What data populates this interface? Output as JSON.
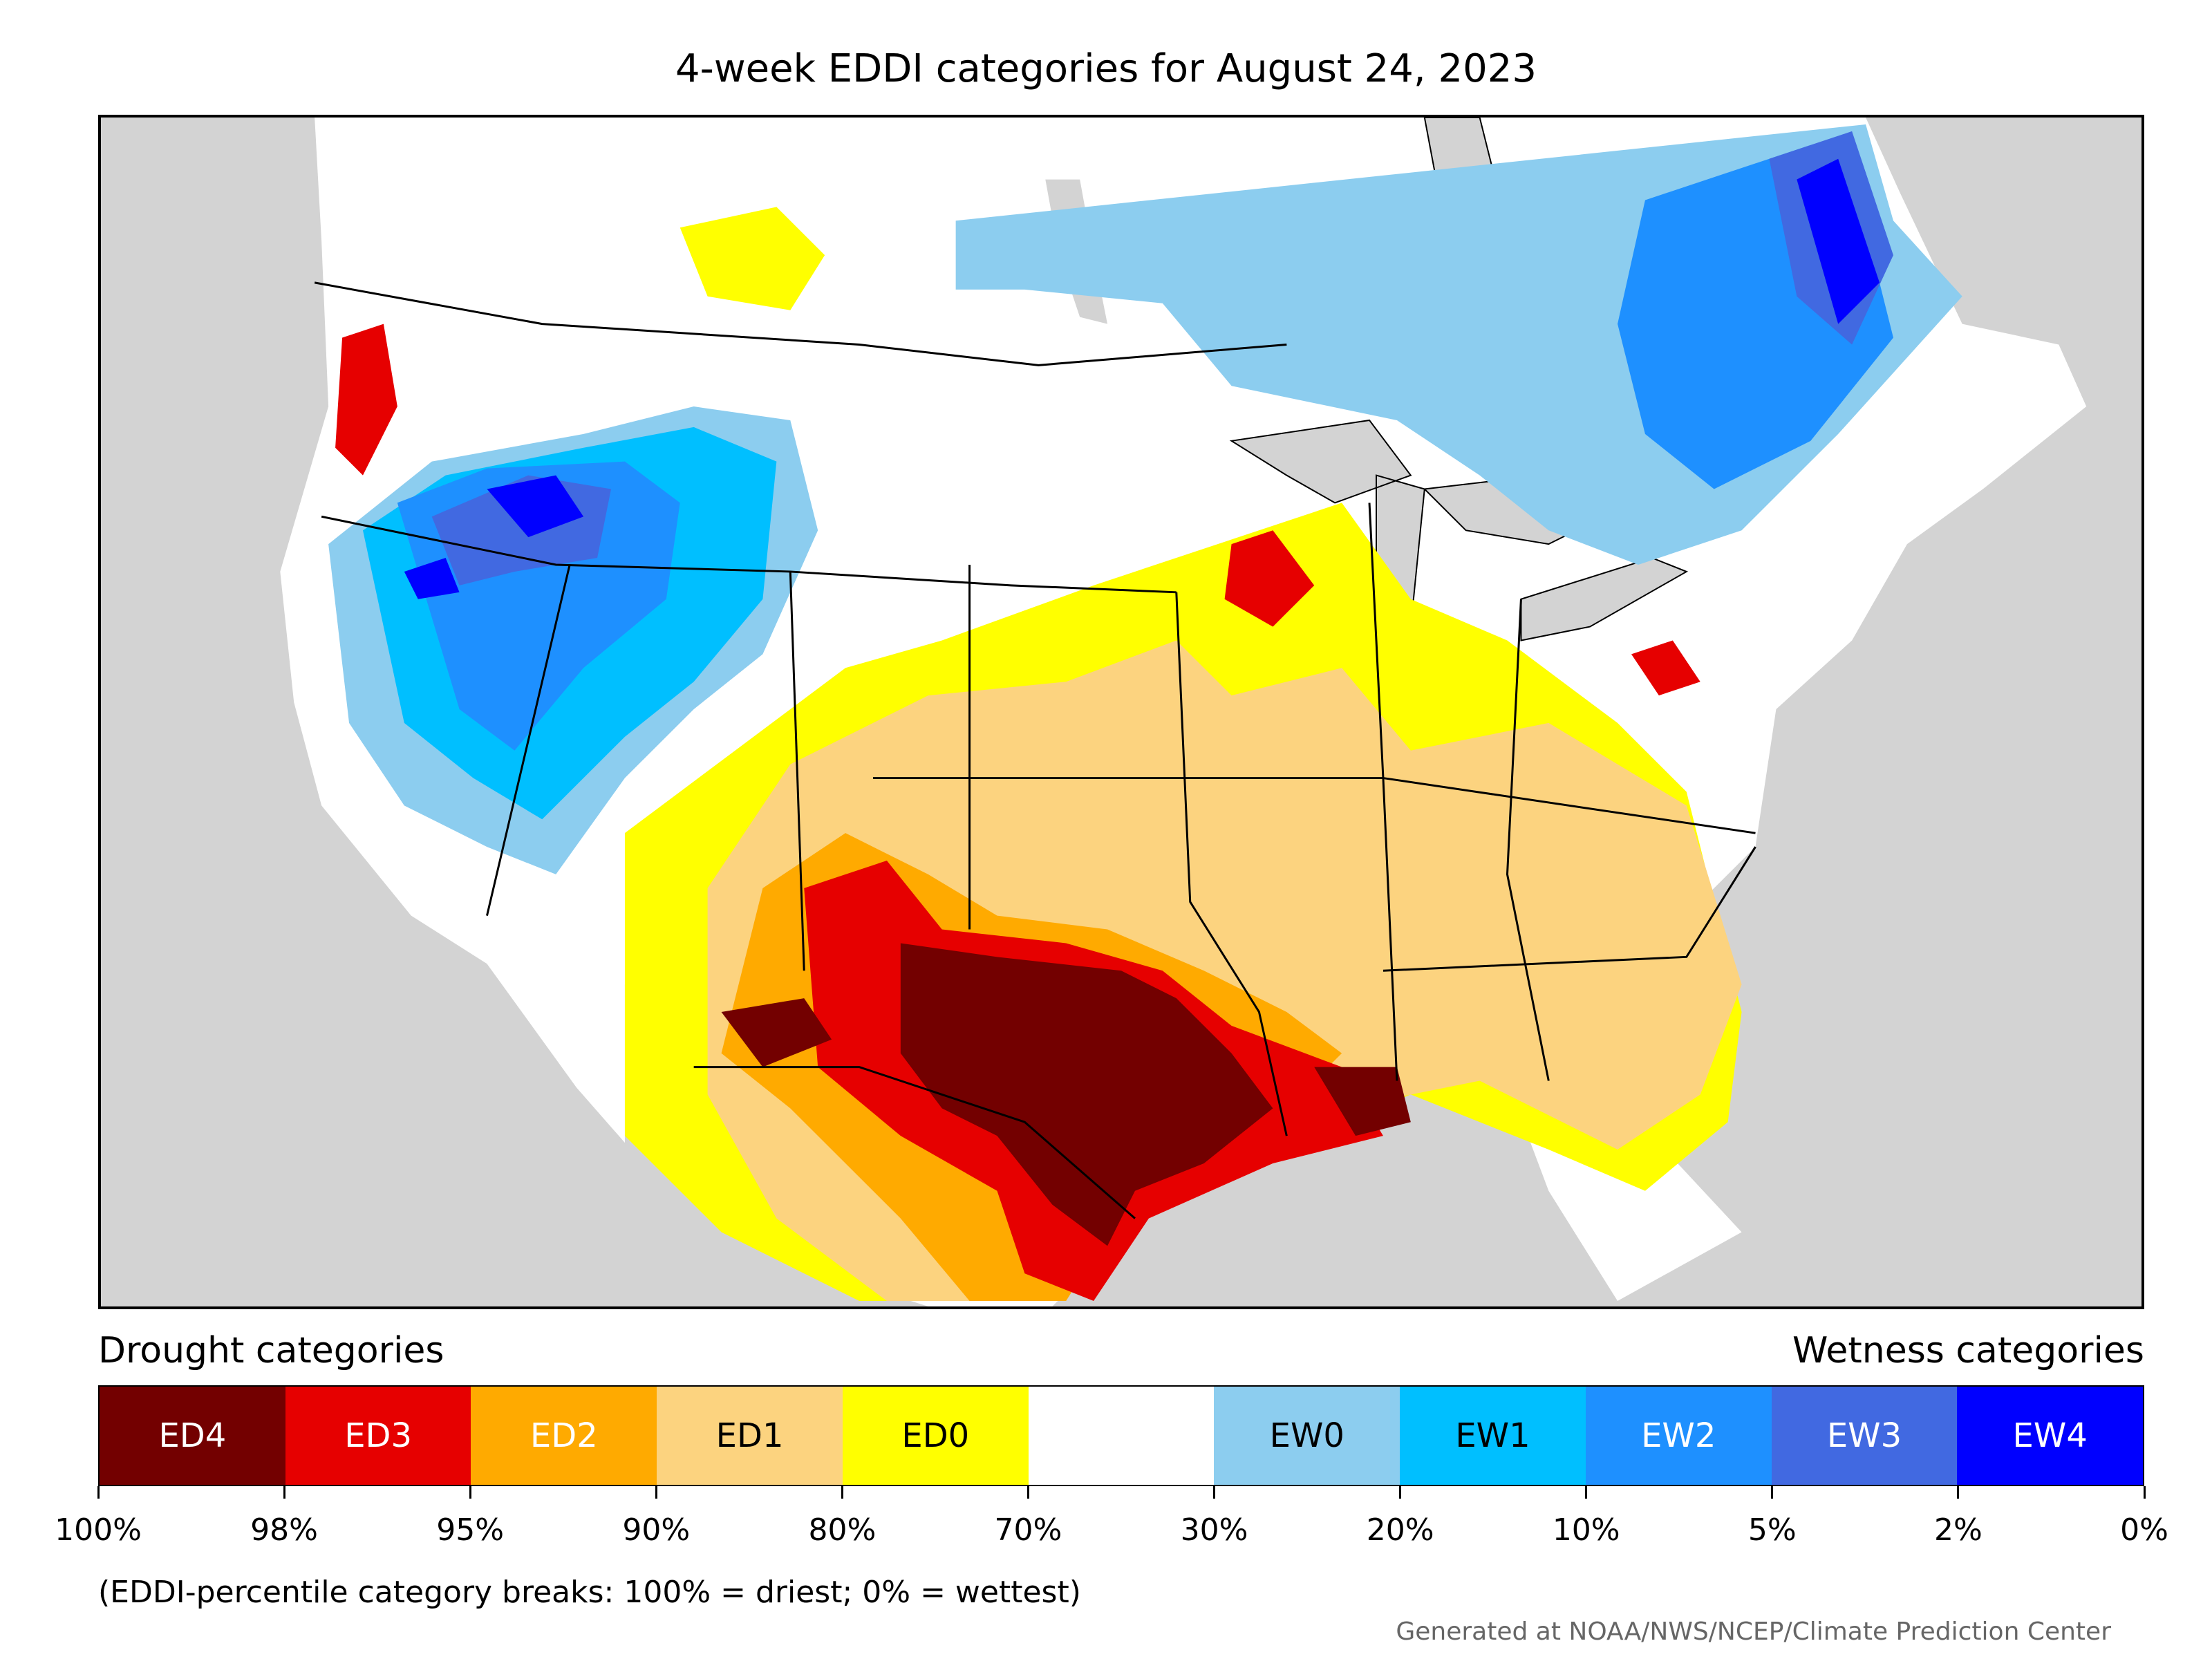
{
  "title": "4-week EDDI categories for August 24, 2023",
  "legend": {
    "drought_heading": "Drought categories",
    "wetness_heading": "Wetness categories",
    "categories": [
      {
        "label": "ED4",
        "color": "#730000",
        "text_color": "#ffffff"
      },
      {
        "label": "ED3",
        "color": "#e60000",
        "text_color": "#ffffff"
      },
      {
        "label": "ED2",
        "color": "#ffaa00",
        "text_color": "#ffffff"
      },
      {
        "label": "ED1",
        "color": "#fcd37f",
        "text_color": "#000000"
      },
      {
        "label": "ED0",
        "color": "#ffff00",
        "text_color": "#000000"
      },
      {
        "label": "",
        "color": "#ffffff",
        "text_color": "#000000"
      },
      {
        "label": "EW0",
        "color": "#8ccdef",
        "text_color": "#000000"
      },
      {
        "label": "EW1",
        "color": "#00bfff",
        "text_color": "#000000"
      },
      {
        "label": "EW2",
        "color": "#1e90ff",
        "text_color": "#ffffff"
      },
      {
        "label": "EW3",
        "color": "#4169e1",
        "text_color": "#ffffff"
      },
      {
        "label": "EW4",
        "color": "#0000ff",
        "text_color": "#ffffff"
      }
    ],
    "breaks": [
      "100%",
      "98%",
      "95%",
      "90%",
      "80%",
      "70%",
      "30%",
      "20%",
      "10%",
      "5%",
      "2%",
      "0%"
    ]
  },
  "note": "(EDDI-percentile category breaks: 100% = driest; 0% = wettest)",
  "credit": "Generated at NOAA/NWS/NCEP/Climate Prediction Center",
  "colors": {
    "water": "#d3d3d3",
    "land": "#ffffff",
    "border": "#000000"
  }
}
